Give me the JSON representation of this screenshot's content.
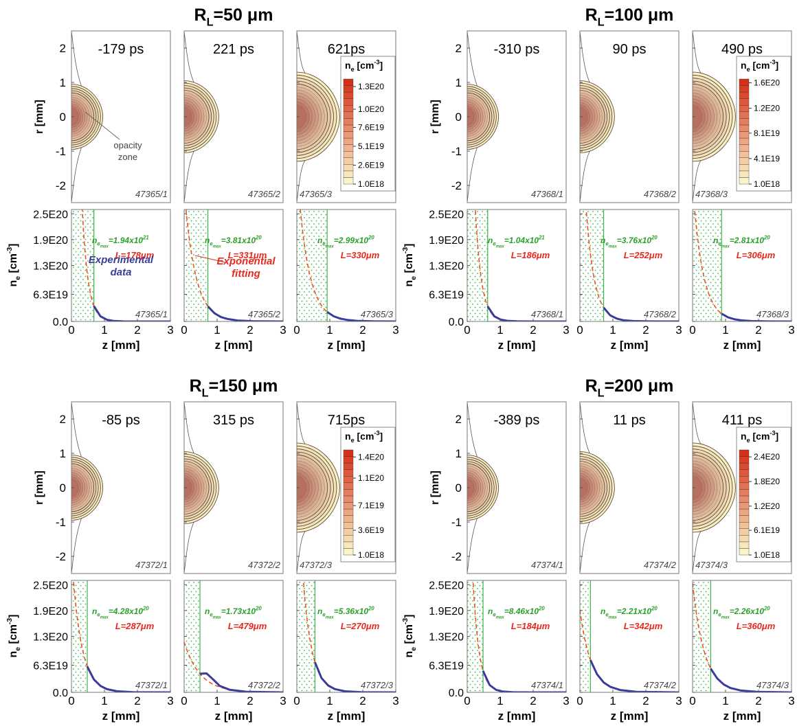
{
  "figure": {
    "ne_symbol": {
      "n": "n",
      "sub": "e",
      "unit": " [cm",
      "exp": "-3",
      "close": "]"
    },
    "nemax_symbol": {
      "n": "n",
      "sub": "e",
      "subsub": "max"
    },
    "contour_axes": {
      "ylabel": "r [mm]",
      "xlim": [
        0,
        3
      ],
      "ylim": [
        -2.5,
        2.5
      ],
      "yticks": [
        2,
        1,
        0,
        -1,
        -2
      ]
    },
    "profile_axes": {
      "type": "line",
      "xlabel": "z [mm]",
      "xlim": [
        0,
        3
      ],
      "xticks": [
        0,
        1,
        2,
        3
      ],
      "ylim": [
        0,
        2.6e+20
      ],
      "yticks": [
        {
          "value": 2.5e+20,
          "label": "2.5E20"
        },
        {
          "value": 1.9e+20,
          "label": "1.9E20"
        },
        {
          "value": 1.3e+20,
          "label": "1.3E20"
        },
        {
          "value": 6.3e+19,
          "label": "6.3E19"
        },
        {
          "value": 0,
          "label": "0.0"
        }
      ],
      "data_color": "#3a3c9c",
      "fit_color": "#f0501e",
      "boundary_color": "#3cb44b"
    },
    "annotations": {
      "opacity": [
        "opacity",
        "zone"
      ],
      "experimental": [
        "Experimental",
        "data"
      ],
      "fitting": [
        "Exponential",
        "fitting"
      ]
    },
    "groups": [
      {
        "title": {
          "r": "R",
          "sub": "L",
          "rest": "=50 μm"
        },
        "colorbar": {
          "lim": [
            1e+18,
            1.4e+20
          ],
          "ticks": [
            {
              "value": 1.3e+20,
              "label": "1.3E20"
            },
            {
              "value": 1e+20,
              "label": "1.0E20"
            },
            {
              "value": 7.6e+19,
              "label": "7.6E19"
            },
            {
              "value": 5.1e+19,
              "label": "5.1E19"
            },
            {
              "value": 2.6e+19,
              "label": "2.6E19"
            },
            {
              "value": 1e+18,
              "label": "1.0E18"
            }
          ]
        },
        "panels": [
          {
            "time": "-179 ps",
            "shot": "47365/1",
            "z": [
              0.68,
              0.88,
              1.08,
              1.28,
              1.58,
              2.08,
              3
            ],
            "ne": [
              3.6e+19,
              1.2e+19,
              3.8e+18,
              1.2e+18,
              2.3e+17,
              1.4e+16,
              0
            ],
            "nemax": {
              "text": "=1.94x10",
              "exp": "21"
            },
            "L": {
              "value": 178,
              "label": "L=178μm"
            }
          },
          {
            "time": "221 ps",
            "shot": "47365/2",
            "z": [
              0.72,
              0.92,
              1.12,
              1.32,
              1.62,
              2.12,
              3
            ],
            "ne": [
              3.5e+19,
              1.9e+19,
              1e+19,
              5.7e+18,
              2.3e+18,
              5.1e+17,
              0
            ],
            "nemax": {
              "text": "=3.81x10",
              "exp": "20"
            },
            "L": {
              "value": 331,
              "label": "L=331μm"
            }
          },
          {
            "time": "621ps",
            "shot": "47365/3",
            "z": [
              0.92,
              1.12,
              1.32,
              1.52,
              1.82,
              2.32,
              3
            ],
            "ne": [
              2.2e+19,
              1.2e+19,
              6.6e+18,
              3.6e+18,
              1.5e+18,
              3.2e+17,
              0
            ],
            "nemax": {
              "text": "=2.99x10",
              "exp": "20"
            },
            "L": {
              "value": 330,
              "label": "L=330μm"
            }
          }
        ]
      },
      {
        "title": {
          "r": "R",
          "sub": "L",
          "rest": "=100 μm"
        },
        "colorbar": {
          "lim": [
            1e+18,
            1.66e+20
          ],
          "ticks": [
            {
              "value": 1.6e+20,
              "label": "1.6E20"
            },
            {
              "value": 1.2e+20,
              "label": "1.2E20"
            },
            {
              "value": 8.1e+19,
              "label": "8.1E19"
            },
            {
              "value": 4.1e+19,
              "label": "4.1E19"
            },
            {
              "value": 1e+18,
              "label": "1.0E18"
            }
          ]
        },
        "panels": [
          {
            "time": "-310 ps",
            "shot": "47368/1",
            "z": [
              0.62,
              0.82,
              1.02,
              1.22,
              1.52,
              2.02,
              3
            ],
            "ne": [
              3.5e+19,
              1.2e+19,
              4.1e+18,
              1.4e+18,
              2.8e+17,
              1.9e+16,
              0
            ],
            "nemax": {
              "text": "=1.04x10",
              "exp": "21"
            },
            "L": {
              "value": 186,
              "label": "L=186μm"
            }
          },
          {
            "time": "90 ps",
            "shot": "47368/2",
            "z": [
              0.72,
              0.92,
              1.12,
              1.32,
              1.62,
              2.12,
              3
            ],
            "ne": [
              3.2e+19,
              1.4e+19,
              6.5e+18,
              2.9e+18,
              9e+17,
              1.2e+17,
              0
            ],
            "nemax": {
              "text": "=3.76x10",
              "exp": "20"
            },
            "L": {
              "value": 252,
              "label": "L=252μm"
            }
          },
          {
            "time": "490 ps",
            "shot": "47368/3",
            "z": [
              0.88,
              1.08,
              1.28,
              1.48,
              1.78,
              2.28,
              3
            ],
            "ne": [
              1.8e+19,
              9.4e+18,
              4.9e+18,
              2.5e+18,
              9.5e+17,
              1.9e+17,
              0
            ],
            "nemax": {
              "text": "=2.81x10",
              "exp": "20"
            },
            "L": {
              "value": 306,
              "label": "L=306μm"
            }
          }
        ]
      },
      {
        "title": {
          "r": "R",
          "sub": "L",
          "rest": "=150 μm"
        },
        "colorbar": {
          "lim": [
            1e+18,
            1.5e+20
          ],
          "ticks": [
            {
              "value": 1.4e+20,
              "label": "1.4E20"
            },
            {
              "value": 1.1e+20,
              "label": "1.1E20"
            },
            {
              "value": 7.1e+19,
              "label": "7.1E19"
            },
            {
              "value": 3.6e+19,
              "label": "3.6E19"
            },
            {
              "value": 1e+18,
              "label": "1.0E18"
            }
          ]
        },
        "panels": [
          {
            "time": "-85 ps",
            "shot": "47372/1",
            "z": [
              0.48,
              0.68,
              0.88,
              1.08,
              1.38,
              1.88,
              3
            ],
            "ne": [
              6e+19,
              3e+19,
              1.5e+19,
              7.4e+18,
              2.6e+18,
              4.6e+17,
              0
            ],
            "nemax": {
              "text": "=4.28x10",
              "exp": "20"
            },
            "L": {
              "value": 287,
              "label": "L=287μm"
            }
          },
          {
            "time": "315 ps",
            "shot": "47372/2",
            "z": [
              0.48,
              0.68,
              0.88,
              1.08,
              1.38,
              1.88,
              3
            ],
            "ne": [
              4.3e+19,
              4.4e+19,
              3e+19,
              1.5e+19,
              6e+18,
              1.5e+18,
              0
            ],
            "nemax": {
              "text": "=1.73x10",
              "exp": "20"
            },
            "L": {
              "value": 479,
              "label": "L=479μm"
            }
          },
          {
            "time": "715ps",
            "shot": "47372/3",
            "z": [
              0.55,
              0.75,
              0.95,
              1.15,
              1.45,
              1.95,
              3
            ],
            "ne": [
              7e+19,
              3.3e+19,
              1.6e+19,
              7.6e+18,
              2.5e+18,
              3.9e+17,
              0
            ],
            "nemax": {
              "text": "=5.36x10",
              "exp": "20"
            },
            "L": {
              "value": 270,
              "label": "L=270μm"
            }
          }
        ]
      },
      {
        "title": {
          "r": "R",
          "sub": "L",
          "rest": "=200 μm"
        },
        "colorbar": {
          "lim": [
            1e+18,
            2.57e+20
          ],
          "ticks": [
            {
              "value": 2.4e+20,
              "label": "2.4E20"
            },
            {
              "value": 1.8e+20,
              "label": "1.8E20"
            },
            {
              "value": 1.2e+20,
              "label": "1.2E20"
            },
            {
              "value": 6.1e+19,
              "label": "6.1E19"
            },
            {
              "value": 1e+18,
              "label": "1.0E18"
            }
          ]
        },
        "panels": [
          {
            "time": "-389 ps",
            "shot": "47374/1",
            "z": [
              0.48,
              0.68,
              0.88,
              1.08,
              1.38,
              1.88,
              3
            ],
            "ne": [
              5e+19,
              1.7e+19,
              5.7e+18,
              1.9e+18,
              3.8e+17,
              2.5e+16,
              0
            ],
            "nemax": {
              "text": "=8.46x10",
              "exp": "20"
            },
            "L": {
              "value": 184,
              "label": "L=184μm"
            }
          },
          {
            "time": "11 ps",
            "shot": "47374/2",
            "z": [
              0.32,
              0.52,
              0.72,
              0.92,
              1.22,
              1.72,
              3
            ],
            "ne": [
              7.5e+19,
              4.2e+19,
              2.3e+19,
              1.3e+19,
              5.4e+18,
              1.3e+18,
              0
            ],
            "nemax": {
              "text": "=2.21x10",
              "exp": "20"
            },
            "L": {
              "value": 342,
              "label": "L=342μm"
            }
          },
          {
            "time": "411 ps",
            "shot": "47374/3",
            "z": [
              0.55,
              0.75,
              0.95,
              1.15,
              1.45,
              1.95,
              3
            ],
            "ne": [
              5.5e+19,
              3.2e+19,
              1.8e+19,
              1e+19,
              4.5e+18,
              1.1e+18,
              0
            ],
            "nemax": {
              "text": "=2.26x10",
              "exp": "20"
            },
            "L": {
              "value": 360,
              "label": "L=360μm"
            }
          }
        ]
      }
    ]
  }
}
